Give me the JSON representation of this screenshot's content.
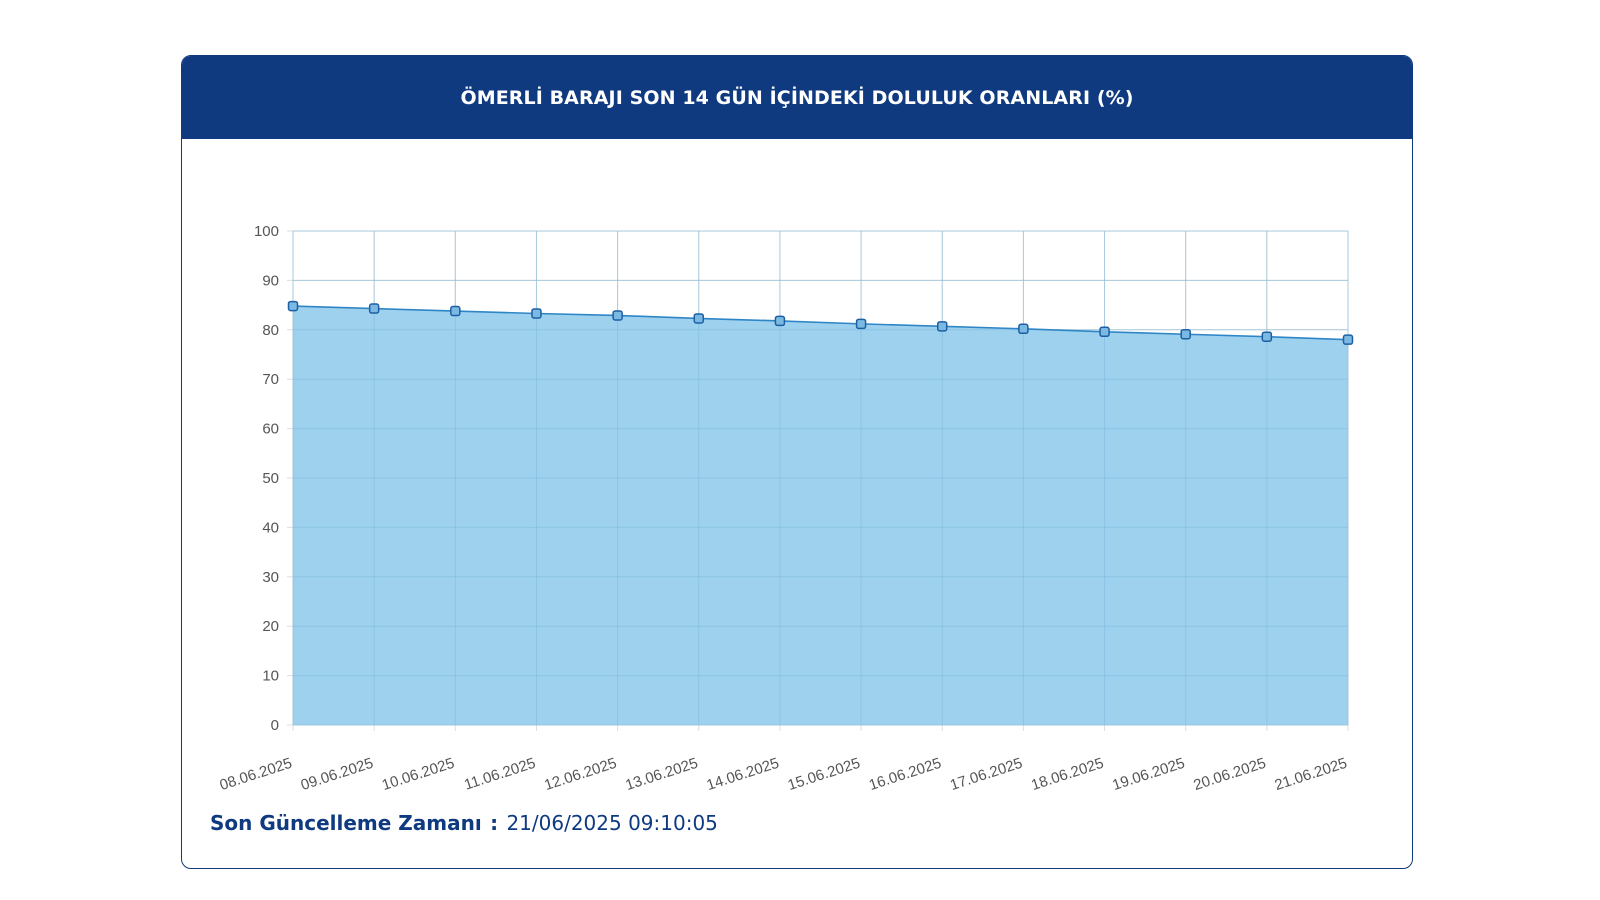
{
  "card": {
    "title": "ÖMERLİ BARAJI SON 14 GÜN İÇİNDEKİ DOLULUK ORANLARI (%)"
  },
  "footer": {
    "label": "Son Güncelleme Zamanı",
    "separator": ":",
    "value": "21/06/2025 09:10:05"
  },
  "colors": {
    "header_bg": "#0f3a80",
    "line": "#2f86c6",
    "fill": "#9dd1ee",
    "marker_fill": "#7cb9e2",
    "marker_stroke": "#1d5fa3",
    "grid": "#dddddd",
    "tick_text": "#555555"
  },
  "chart_data": {
    "type": "area",
    "x": [
      "08.06.2025",
      "09.06.2025",
      "10.06.2025",
      "11.06.2025",
      "12.06.2025",
      "13.06.2025",
      "14.06.2025",
      "15.06.2025",
      "16.06.2025",
      "17.06.2025",
      "18.06.2025",
      "19.06.2025",
      "20.06.2025",
      "21.06.2025"
    ],
    "series": [
      {
        "values": [
          84.8,
          84.3,
          83.8,
          83.3,
          82.9,
          82.3,
          81.8,
          81.2,
          80.7,
          80.2,
          79.6,
          79.1,
          78.6,
          78.0
        ]
      }
    ],
    "ylim": [
      0,
      100
    ],
    "yticks": [
      0,
      10,
      20,
      30,
      40,
      50,
      60,
      70,
      80,
      90,
      100
    ],
    "grid": true,
    "legend": "none"
  }
}
